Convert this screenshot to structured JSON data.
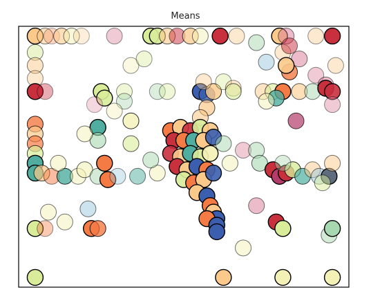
{
  "chart_data": {
    "type": "scatter",
    "title": "Means",
    "xlabel": "",
    "ylabel": "",
    "axes_visible": false,
    "grid": false,
    "legend": "none",
    "xlim": [
      0,
      10
    ],
    "ylim": [
      0,
      8
    ],
    "palette": {
      "red": "#c9303e",
      "orange": "#f57b45",
      "peach": "#fbc98a",
      "light_yellow": "#f4f1b6",
      "lime": "#d8ec9a",
      "teal": "#4fae9f",
      "blue": "#3b5fae",
      "pink": "#d97a96",
      "magenta": "#b43c6a",
      "light_blue": "#9cc8dc",
      "sage": "#a7d8b0",
      "slate": "#5d6d7e"
    },
    "points": [
      {
        "x": 0.5,
        "y": 7.7,
        "c": "peach",
        "a": 1.0
      },
      {
        "x": 0.8,
        "y": 7.7,
        "c": "peach",
        "a": 0.5
      },
      {
        "x": 1.0,
        "y": 7.7,
        "c": "orange",
        "a": 0.3
      },
      {
        "x": 1.3,
        "y": 7.7,
        "c": "peach",
        "a": 0.6
      },
      {
        "x": 1.6,
        "y": 7.7,
        "c": "light_yellow",
        "a": 0.5
      },
      {
        "x": 1.9,
        "y": 7.7,
        "c": "peach",
        "a": 0.3
      },
      {
        "x": 2.9,
        "y": 7.7,
        "c": "pink",
        "a": 0.4
      },
      {
        "x": 4.0,
        "y": 7.7,
        "c": "lime",
        "a": 1.0
      },
      {
        "x": 4.2,
        "y": 7.7,
        "c": "lime",
        "a": 0.9
      },
      {
        "x": 4.5,
        "y": 7.7,
        "c": "peach",
        "a": 0.6
      },
      {
        "x": 4.8,
        "y": 7.7,
        "c": "red",
        "a": 0.5
      },
      {
        "x": 5.2,
        "y": 7.7,
        "c": "peach",
        "a": 0.7
      },
      {
        "x": 5.5,
        "y": 7.7,
        "c": "light_yellow",
        "a": 0.5
      },
      {
        "x": 6.1,
        "y": 7.7,
        "c": "red",
        "a": 1.0
      },
      {
        "x": 6.6,
        "y": 7.7,
        "c": "peach",
        "a": 0.4
      },
      {
        "x": 7.9,
        "y": 7.7,
        "c": "peach",
        "a": 1.0
      },
      {
        "x": 8.1,
        "y": 7.7,
        "c": "pink",
        "a": 0.5
      },
      {
        "x": 9.0,
        "y": 7.7,
        "c": "peach",
        "a": 0.4
      },
      {
        "x": 9.5,
        "y": 7.7,
        "c": "red",
        "a": 1.0
      },
      {
        "x": 0.5,
        "y": 7.2,
        "c": "lime",
        "a": 0.5
      },
      {
        "x": 0.5,
        "y": 6.8,
        "c": "peach",
        "a": 0.5
      },
      {
        "x": 0.5,
        "y": 6.4,
        "c": "peach",
        "a": 0.4
      },
      {
        "x": 0.5,
        "y": 6.0,
        "c": "red",
        "a": 1.0
      },
      {
        "x": 0.8,
        "y": 6.0,
        "c": "red",
        "a": 0.4
      },
      {
        "x": 2.5,
        "y": 6.0,
        "c": "lime",
        "a": 1.0
      },
      {
        "x": 2.6,
        "y": 5.8,
        "c": "lime",
        "a": 0.9
      },
      {
        "x": 2.3,
        "y": 5.6,
        "c": "pink",
        "a": 0.3
      },
      {
        "x": 3.2,
        "y": 6.0,
        "c": "lime",
        "a": 0.4
      },
      {
        "x": 3.4,
        "y": 6.8,
        "c": "light_yellow",
        "a": 0.4
      },
      {
        "x": 3.8,
        "y": 7.0,
        "c": "lime",
        "a": 0.4
      },
      {
        "x": 4.2,
        "y": 6.0,
        "c": "sage",
        "a": 0.4
      },
      {
        "x": 4.5,
        "y": 6.0,
        "c": "lime",
        "a": 0.4
      },
      {
        "x": 3.2,
        "y": 5.7,
        "c": "sage",
        "a": 0.4
      },
      {
        "x": 2.9,
        "y": 5.4,
        "c": "light_yellow",
        "a": 0.4
      },
      {
        "x": 3.4,
        "y": 4.4,
        "c": "lime",
        "a": 0.6
      },
      {
        "x": 5.5,
        "y": 6.0,
        "c": "blue",
        "a": 1.0
      },
      {
        "x": 5.7,
        "y": 5.9,
        "c": "blue",
        "a": 0.8
      },
      {
        "x": 5.9,
        "y": 6.0,
        "c": "peach",
        "a": 0.8
      },
      {
        "x": 5.7,
        "y": 5.5,
        "c": "peach",
        "a": 0.7
      },
      {
        "x": 5.5,
        "y": 5.2,
        "c": "peach",
        "a": 0.6
      },
      {
        "x": 6.2,
        "y": 6.3,
        "c": "lime",
        "a": 0.4
      },
      {
        "x": 6.5,
        "y": 6.1,
        "c": "peach",
        "a": 0.4
      },
      {
        "x": 5.6,
        "y": 6.3,
        "c": "peach",
        "a": 0.4
      },
      {
        "x": 5.3,
        "y": 4.8,
        "c": "peach",
        "a": 0.6
      },
      {
        "x": 6.5,
        "y": 6.0,
        "c": "lime",
        "a": 0.6
      },
      {
        "x": 7.2,
        "y": 7.5,
        "c": "sage",
        "a": 0.5
      },
      {
        "x": 7.5,
        "y": 6.9,
        "c": "light_blue",
        "a": 0.5
      },
      {
        "x": 8.0,
        "y": 7.2,
        "c": "peach",
        "a": 0.4
      },
      {
        "x": 8.2,
        "y": 7.4,
        "c": "red",
        "a": 0.5
      },
      {
        "x": 8.5,
        "y": 7.0,
        "c": "pink",
        "a": 0.5
      },
      {
        "x": 8.2,
        "y": 6.6,
        "c": "orange",
        "a": 0.8
      },
      {
        "x": 8.1,
        "y": 6.8,
        "c": "peach",
        "a": 0.9
      },
      {
        "x": 9.0,
        "y": 6.5,
        "c": "pink",
        "a": 0.4
      },
      {
        "x": 9.3,
        "y": 6.2,
        "c": "pink",
        "a": 0.5
      },
      {
        "x": 9.6,
        "y": 6.8,
        "c": "peach",
        "a": 0.4
      },
      {
        "x": 7.4,
        "y": 6.0,
        "c": "peach",
        "a": 0.5
      },
      {
        "x": 7.7,
        "y": 6.0,
        "c": "lime",
        "a": 0.6
      },
      {
        "x": 8.0,
        "y": 6.0,
        "c": "orange",
        "a": 1.0
      },
      {
        "x": 7.8,
        "y": 5.8,
        "c": "teal",
        "a": 0.8
      },
      {
        "x": 7.5,
        "y": 5.7,
        "c": "light_yellow",
        "a": 0.5
      },
      {
        "x": 8.5,
        "y": 6.0,
        "c": "peach",
        "a": 0.6
      },
      {
        "x": 8.9,
        "y": 6.0,
        "c": "sage",
        "a": 0.5
      },
      {
        "x": 9.3,
        "y": 6.1,
        "c": "red",
        "a": 1.0
      },
      {
        "x": 9.5,
        "y": 6.0,
        "c": "red",
        "a": 0.9
      },
      {
        "x": 9.5,
        "y": 5.6,
        "c": "pink",
        "a": 0.4
      },
      {
        "x": 8.4,
        "y": 5.1,
        "c": "magenta",
        "a": 0.7
      },
      {
        "x": 3.4,
        "y": 5.1,
        "c": "light_yellow",
        "a": 0.8
      },
      {
        "x": 0.5,
        "y": 5.0,
        "c": "orange",
        "a": 0.8
      },
      {
        "x": 0.5,
        "y": 4.7,
        "c": "peach",
        "a": 0.7
      },
      {
        "x": 0.5,
        "y": 4.4,
        "c": "orange",
        "a": 0.7
      },
      {
        "x": 0.5,
        "y": 4.1,
        "c": "lime",
        "a": 0.7
      },
      {
        "x": 0.5,
        "y": 3.8,
        "c": "teal",
        "a": 1.0
      },
      {
        "x": 0.5,
        "y": 3.5,
        "c": "teal",
        "a": 1.0
      },
      {
        "x": 0.7,
        "y": 3.5,
        "c": "peach",
        "a": 0.7
      },
      {
        "x": 1.0,
        "y": 3.4,
        "c": "orange",
        "a": 0.5
      },
      {
        "x": 1.4,
        "y": 3.4,
        "c": "teal",
        "a": 0.8
      },
      {
        "x": 1.8,
        "y": 3.4,
        "c": "light_yellow",
        "a": 0.5
      },
      {
        "x": 2.0,
        "y": 3.6,
        "c": "light_yellow",
        "a": 0.6
      },
      {
        "x": 2.4,
        "y": 3.4,
        "c": "sage",
        "a": 0.5
      },
      {
        "x": 2.7,
        "y": 3.3,
        "c": "orange",
        "a": 1.0
      },
      {
        "x": 2.6,
        "y": 3.8,
        "c": "orange",
        "a": 1.0
      },
      {
        "x": 3.0,
        "y": 3.4,
        "c": "light_blue",
        "a": 0.4
      },
      {
        "x": 3.6,
        "y": 3.4,
        "c": "teal",
        "a": 0.5
      },
      {
        "x": 2.4,
        "y": 4.9,
        "c": "teal",
        "a": 1.0
      },
      {
        "x": 2.4,
        "y": 4.5,
        "c": "sage",
        "a": 0.6
      },
      {
        "x": 2.0,
        "y": 4.7,
        "c": "light_yellow",
        "a": 0.5
      },
      {
        "x": 1.2,
        "y": 3.8,
        "c": "light_yellow",
        "a": 0.5
      },
      {
        "x": 4.6,
        "y": 4.8,
        "c": "orange",
        "a": 1.0
      },
      {
        "x": 4.9,
        "y": 4.9,
        "c": "peach",
        "a": 1.0
      },
      {
        "x": 5.2,
        "y": 4.8,
        "c": "red",
        "a": 0.9
      },
      {
        "x": 5.5,
        "y": 4.9,
        "c": "lime",
        "a": 0.9
      },
      {
        "x": 5.8,
        "y": 4.8,
        "c": "peach",
        "a": 0.9
      },
      {
        "x": 4.7,
        "y": 4.5,
        "c": "red",
        "a": 1.0
      },
      {
        "x": 5.0,
        "y": 4.5,
        "c": "orange",
        "a": 1.0
      },
      {
        "x": 5.3,
        "y": 4.5,
        "c": "teal",
        "a": 1.0
      },
      {
        "x": 5.6,
        "y": 4.5,
        "c": "peach",
        "a": 1.0
      },
      {
        "x": 5.9,
        "y": 4.6,
        "c": "blue",
        "a": 0.9
      },
      {
        "x": 4.6,
        "y": 4.1,
        "c": "red",
        "a": 0.9
      },
      {
        "x": 4.9,
        "y": 4.0,
        "c": "peach",
        "a": 0.9
      },
      {
        "x": 5.2,
        "y": 4.1,
        "c": "teal",
        "a": 1.0
      },
      {
        "x": 5.5,
        "y": 4.0,
        "c": "lime",
        "a": 0.9
      },
      {
        "x": 5.8,
        "y": 4.1,
        "c": "light_yellow",
        "a": 0.9
      },
      {
        "x": 4.8,
        "y": 3.7,
        "c": "red",
        "a": 1.0
      },
      {
        "x": 5.1,
        "y": 3.6,
        "c": "peach",
        "a": 1.0
      },
      {
        "x": 5.4,
        "y": 3.7,
        "c": "blue",
        "a": 1.0
      },
      {
        "x": 5.7,
        "y": 3.6,
        "c": "orange",
        "a": 1.0
      },
      {
        "x": 5.0,
        "y": 3.3,
        "c": "lime",
        "a": 0.9
      },
      {
        "x": 5.3,
        "y": 3.2,
        "c": "orange",
        "a": 1.0
      },
      {
        "x": 5.6,
        "y": 3.3,
        "c": "peach",
        "a": 1.0
      },
      {
        "x": 5.9,
        "y": 3.5,
        "c": "blue",
        "a": 0.9
      },
      {
        "x": 5.4,
        "y": 2.9,
        "c": "peach",
        "a": 1.0
      },
      {
        "x": 5.7,
        "y": 2.8,
        "c": "blue",
        "a": 1.0
      },
      {
        "x": 5.8,
        "y": 2.5,
        "c": "orange",
        "a": 1.0
      },
      {
        "x": 5.9,
        "y": 2.3,
        "c": "peach",
        "a": 1.0
      },
      {
        "x": 6.0,
        "y": 2.1,
        "c": "blue",
        "a": 1.0
      },
      {
        "x": 5.7,
        "y": 2.1,
        "c": "orange",
        "a": 1.0
      },
      {
        "x": 6.0,
        "y": 1.9,
        "c": "blue",
        "a": 1.0
      },
      {
        "x": 6.0,
        "y": 1.7,
        "c": "blue",
        "a": 1.0
      },
      {
        "x": 4.2,
        "y": 3.5,
        "c": "light_yellow",
        "a": 0.5
      },
      {
        "x": 4.0,
        "y": 3.9,
        "c": "sage",
        "a": 0.5
      },
      {
        "x": 6.2,
        "y": 4.4,
        "c": "sage",
        "a": 0.5
      },
      {
        "x": 6.4,
        "y": 3.8,
        "c": "light_yellow",
        "a": 0.5
      },
      {
        "x": 6.8,
        "y": 4.2,
        "c": "pink",
        "a": 0.4
      },
      {
        "x": 7.2,
        "y": 4.2,
        "c": "sage",
        "a": 0.5
      },
      {
        "x": 7.3,
        "y": 3.8,
        "c": "sage",
        "a": 0.6
      },
      {
        "x": 7.7,
        "y": 3.6,
        "c": "red",
        "a": 1.0
      },
      {
        "x": 7.9,
        "y": 3.4,
        "c": "magenta",
        "a": 1.0
      },
      {
        "x": 8.1,
        "y": 3.5,
        "c": "red",
        "a": 1.0
      },
      {
        "x": 8.3,
        "y": 3.6,
        "c": "lime",
        "a": 0.8
      },
      {
        "x": 8.6,
        "y": 3.4,
        "c": "teal",
        "a": 0.7
      },
      {
        "x": 8.9,
        "y": 3.6,
        "c": "peach",
        "a": 0.5
      },
      {
        "x": 9.1,
        "y": 3.4,
        "c": "light_blue",
        "a": 0.5
      },
      {
        "x": 9.4,
        "y": 3.4,
        "c": "slate",
        "a": 1.0
      },
      {
        "x": 9.5,
        "y": 3.8,
        "c": "peach",
        "a": 0.5
      },
      {
        "x": 9.2,
        "y": 3.2,
        "c": "lime",
        "a": 0.5
      },
      {
        "x": 7.2,
        "y": 2.5,
        "c": "pink",
        "a": 0.5
      },
      {
        "x": 8.0,
        "y": 3.8,
        "c": "sage",
        "a": 0.4
      },
      {
        "x": 2.1,
        "y": 2.4,
        "c": "light_blue",
        "a": 0.5
      },
      {
        "x": 0.9,
        "y": 2.3,
        "c": "light_yellow",
        "a": 0.5
      },
      {
        "x": 1.4,
        "y": 2.0,
        "c": "light_yellow",
        "a": 0.5
      },
      {
        "x": 0.5,
        "y": 1.8,
        "c": "lime",
        "a": 1.0
      },
      {
        "x": 0.8,
        "y": 1.8,
        "c": "orange",
        "a": 0.4
      },
      {
        "x": 2.2,
        "y": 1.8,
        "c": "orange",
        "a": 1.0
      },
      {
        "x": 2.4,
        "y": 1.8,
        "c": "orange",
        "a": 0.8
      },
      {
        "x": 6.8,
        "y": 1.2,
        "c": "light_yellow",
        "a": 0.5
      },
      {
        "x": 7.8,
        "y": 2.0,
        "c": "red",
        "a": 1.0
      },
      {
        "x": 8.0,
        "y": 1.8,
        "c": "lime",
        "a": 1.0
      },
      {
        "x": 9.4,
        "y": 1.6,
        "c": "sage",
        "a": 0.5
      },
      {
        "x": 9.5,
        "y": 1.8,
        "c": "sage",
        "a": 1.0
      },
      {
        "x": 0.5,
        "y": 0.3,
        "c": "lime",
        "a": 1.0
      },
      {
        "x": 6.2,
        "y": 0.3,
        "c": "peach",
        "a": 1.0
      },
      {
        "x": 8.0,
        "y": 0.3,
        "c": "light_yellow",
        "a": 1.0
      },
      {
        "x": 9.5,
        "y": 0.3,
        "c": "light_yellow",
        "a": 1.0
      }
    ]
  }
}
